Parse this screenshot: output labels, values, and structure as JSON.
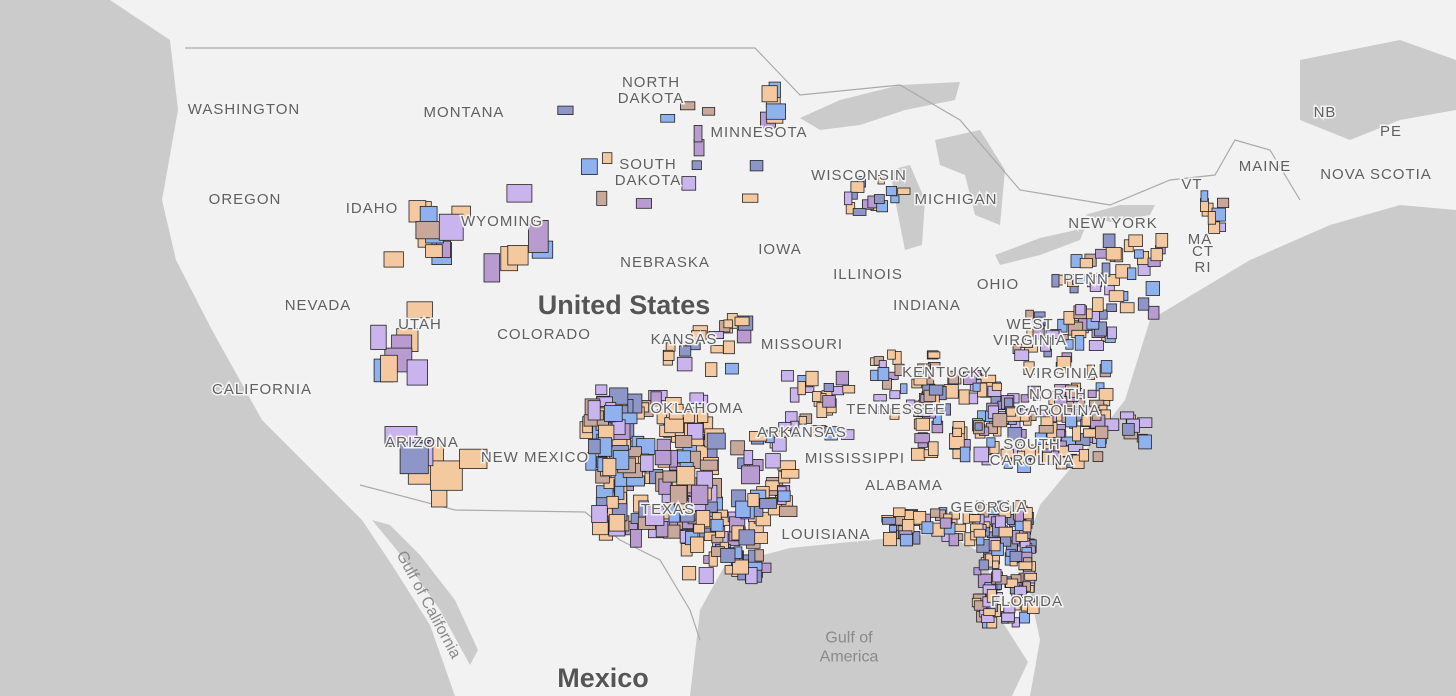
{
  "map": {
    "state_labels": [
      {
        "lines": [
          "WASHINGTON"
        ]
      },
      {
        "lines": [
          "MONTANA"
        ]
      },
      {
        "lines": [
          "NORTH",
          "DAKOTA"
        ]
      },
      {
        "lines": [
          "MINNESOTA"
        ]
      },
      {
        "lines": [
          "SOUTH",
          "DAKOTA"
        ]
      },
      {
        "lines": [
          "OREGON"
        ]
      },
      {
        "lines": [
          "IDAHO"
        ]
      },
      {
        "lines": [
          "WYOMING"
        ]
      },
      {
        "lines": [
          "WISCONSIN"
        ]
      },
      {
        "lines": [
          "MICHIGAN"
        ]
      },
      {
        "lines": [
          "NEBRASKA"
        ]
      },
      {
        "lines": [
          "IOWA"
        ]
      },
      {
        "lines": [
          "NEVADA"
        ]
      },
      {
        "lines": [
          "UTAH"
        ]
      },
      {
        "lines": [
          "COLORADO"
        ]
      },
      {
        "lines": [
          "ILLINOIS"
        ]
      },
      {
        "lines": [
          "INDIANA"
        ]
      },
      {
        "lines": [
          "OHIO"
        ]
      },
      {
        "lines": [
          "KANSAS"
        ]
      },
      {
        "lines": [
          "MISSOURI"
        ]
      },
      {
        "lines": [
          "WEST",
          "VIRGINIA"
        ]
      },
      {
        "lines": [
          "VIRGINIA"
        ]
      },
      {
        "lines": [
          "KENTUCKY"
        ]
      },
      {
        "lines": [
          "CALIFORNIA"
        ]
      },
      {
        "lines": [
          "ARIZONA"
        ]
      },
      {
        "lines": [
          "NEW MEXICO"
        ]
      },
      {
        "lines": [
          "OKLAHOMA"
        ]
      },
      {
        "lines": [
          "ARKANSAS"
        ]
      },
      {
        "lines": [
          "TENNESSEE"
        ]
      },
      {
        "lines": [
          "NORTH",
          "CAROLINA"
        ]
      },
      {
        "lines": [
          "SOUTH",
          "CAROLINA"
        ]
      },
      {
        "lines": [
          "MISSISSIPPI"
        ]
      },
      {
        "lines": [
          "ALABAMA"
        ]
      },
      {
        "lines": [
          "GEORGIA"
        ]
      },
      {
        "lines": [
          "TEXAS"
        ]
      },
      {
        "lines": [
          "LOUISIANA"
        ]
      },
      {
        "lines": [
          "FLORIDA"
        ]
      },
      {
        "lines": [
          "NEW YORK"
        ]
      },
      {
        "lines": [
          "PENN"
        ]
      },
      {
        "lines": [
          "VT"
        ]
      },
      {
        "lines": [
          "MA"
        ]
      },
      {
        "lines": [
          "CT",
          "RI"
        ]
      },
      {
        "lines": [
          "MAINE"
        ]
      },
      {
        "lines": [
          "NB"
        ]
      },
      {
        "lines": [
          "PE"
        ]
      },
      {
        "lines": [
          "NOVA SCOTIA"
        ]
      }
    ],
    "country_labels": [
      "United States",
      "Mexico"
    ],
    "water_labels": [
      {
        "lines": [
          "Gulf of California"
        ]
      },
      {
        "lines": [
          "Gulf of",
          "America"
        ]
      }
    ]
  }
}
